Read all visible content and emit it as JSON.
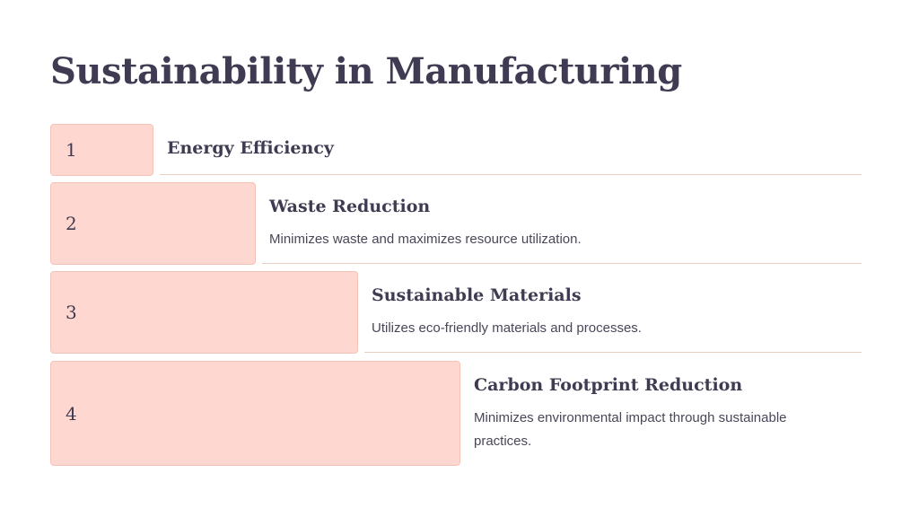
{
  "slide": {
    "title": "Sustainability in Manufacturing"
  },
  "steps": [
    {
      "number": "1",
      "title": "Energy Efficiency",
      "description": ""
    },
    {
      "number": "2",
      "title": "Waste Reduction",
      "description": "Minimizes waste and maximizes resource utilization."
    },
    {
      "number": "3",
      "title": "Sustainable Materials",
      "description": "Utilizes eco-friendly materials and processes."
    },
    {
      "number": "4",
      "title": "Carbon Footprint Reduction",
      "description": "Minimizes environmental impact through sustainable practices."
    }
  ],
  "colors": {
    "block_fill": "#fed8d0",
    "text": "#403b52",
    "divider": "#e8cfc3"
  }
}
